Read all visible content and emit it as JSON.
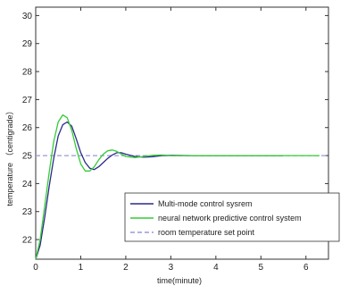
{
  "chart_data": {
    "type": "line",
    "title": "",
    "xlabel": "time(minute)",
    "ylabel": "temperature （centigrade）",
    "xlim": [
      0,
      6.5
    ],
    "ylim": [
      21.3,
      30.3
    ],
    "xticks": [
      0,
      1,
      2,
      3,
      4,
      5,
      6
    ],
    "yticks": [
      22,
      23,
      24,
      25,
      26,
      27,
      28,
      29,
      30
    ],
    "grid": false,
    "legend_position": "lower-right",
    "series": [
      {
        "name": "Multi-mode control sysrem",
        "color": "#2b2a8a",
        "dash": "solid",
        "x": [
          0,
          0.1,
          0.2,
          0.3,
          0.4,
          0.5,
          0.6,
          0.7,
          0.8,
          0.9,
          1.0,
          1.1,
          1.2,
          1.3,
          1.4,
          1.5,
          1.6,
          1.7,
          1.8,
          1.9,
          2.0,
          2.2,
          2.4,
          2.6,
          2.8,
          3.0,
          3.5,
          4.0,
          4.5,
          5.0,
          5.5
        ],
        "y": [
          21.3,
          21.8,
          22.8,
          23.9,
          24.9,
          25.7,
          26.1,
          26.2,
          26.05,
          25.6,
          25.1,
          24.75,
          24.55,
          24.5,
          24.6,
          24.75,
          24.9,
          25.02,
          25.1,
          25.1,
          25.05,
          24.97,
          24.94,
          24.96,
          25.0,
          25.01,
          25.0,
          25.0,
          25.0,
          25.0,
          25.0
        ]
      },
      {
        "name": "neural network predictive control system",
        "color": "#33cc33",
        "dash": "solid",
        "x": [
          0,
          0.1,
          0.2,
          0.3,
          0.4,
          0.5,
          0.6,
          0.7,
          0.8,
          0.9,
          1.0,
          1.1,
          1.2,
          1.3,
          1.4,
          1.5,
          1.6,
          1.7,
          1.8,
          1.9,
          2.0,
          2.2,
          2.4,
          2.6,
          2.8,
          3.0,
          3.5,
          4.0,
          4.5,
          5.0,
          5.5,
          6.0,
          6.3
        ],
        "y": [
          21.3,
          22.0,
          23.2,
          24.4,
          25.5,
          26.2,
          26.45,
          26.35,
          25.9,
          25.25,
          24.7,
          24.45,
          24.45,
          24.6,
          24.85,
          25.05,
          25.17,
          25.2,
          25.15,
          25.05,
          24.97,
          24.93,
          24.97,
          25.01,
          25.02,
          25.0,
          25.0,
          25.0,
          25.0,
          25.0,
          25.0,
          25.0,
          25.0
        ]
      },
      {
        "name": "room temperature set point",
        "color": "#9a9ad6",
        "dash": "dashed",
        "x": [
          0,
          6.5
        ],
        "y": [
          25,
          25
        ]
      }
    ]
  }
}
